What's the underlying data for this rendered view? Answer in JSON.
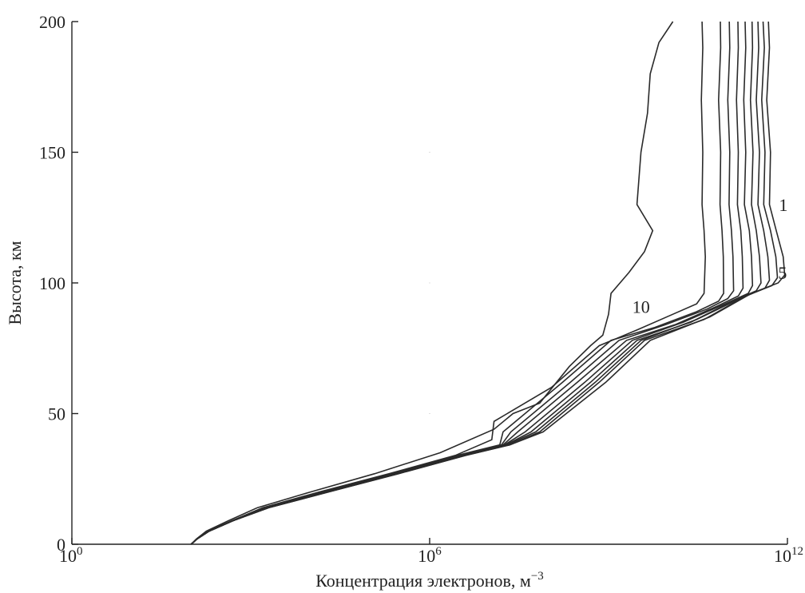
{
  "chart_data": {
    "type": "line",
    "xlabel": "Концентрация электронов, м",
    "xlabel_sup": "−3",
    "ylabel": "Высота, км",
    "xscale": "log",
    "xlim": [
      1,
      1000000000000
    ],
    "ylim": [
      0,
      200
    ],
    "x_ticks": [
      {
        "value": 1,
        "base": "10",
        "exp": "0"
      },
      {
        "value": 1000000,
        "base": "10",
        "exp": "6"
      },
      {
        "value": 1000000000000,
        "base": "10",
        "exp": "12"
      }
    ],
    "y_ticks": [
      0,
      50,
      100,
      150,
      200
    ],
    "grid": false,
    "series_labels": [
      {
        "text": "1",
        "series_index": 0,
        "x": 720000000000,
        "y": 130
      },
      {
        "text": "5",
        "series_index": 4,
        "x": 700000000000,
        "y": 104
      },
      {
        "text": "10",
        "series_index": 9,
        "x": 2500000000,
        "y": 91
      }
    ],
    "series": [
      {
        "x": [
          100,
          125,
          200,
          500,
          2000,
          20000,
          300000,
          4000000,
          22000000,
          80000000,
          900000000,
          5000000000,
          50000000000,
          250000000000,
          700000000000,
          900000000000,
          850000000000,
          650000000000,
          500000000000,
          520000000000,
          450000000000,
          500000000000,
          480000000000
        ],
        "y": [
          0,
          2,
          5,
          9,
          14,
          20,
          27,
          34,
          38,
          43,
          62,
          78,
          87,
          96,
          100,
          103,
          110,
          120,
          130,
          150,
          170,
          190,
          200
        ]
      },
      {
        "x": [
          100,
          125,
          200,
          500,
          2000,
          20000,
          300000,
          4000000,
          22000000,
          70000000,
          700000000,
          4000000000,
          40000000000,
          200000000000,
          550000000000,
          680000000000,
          640000000000,
          520000000000,
          400000000000,
          420000000000,
          370000000000,
          410000000000,
          390000000000
        ],
        "y": [
          0,
          2,
          5,
          9,
          14,
          20,
          27,
          34,
          38,
          43,
          62,
          78,
          86,
          95,
          99,
          102,
          110,
          120,
          130,
          150,
          170,
          190,
          200
        ]
      },
      {
        "x": [
          100,
          125,
          200,
          500,
          2000,
          20000,
          280000,
          3800000,
          20000000,
          60000000,
          600000000,
          3500000000,
          30000000000,
          160000000000,
          420000000000,
          500000000000,
          470000000000,
          400000000000,
          320000000000,
          340000000000,
          300000000000,
          330000000000,
          320000000000
        ],
        "y": [
          0,
          2,
          5,
          9,
          14,
          20,
          27,
          34,
          38,
          43,
          62,
          78,
          86,
          94,
          98,
          101,
          110,
          120,
          130,
          150,
          170,
          190,
          200
        ]
      },
      {
        "x": [
          100,
          125,
          200,
          500,
          1900,
          19000,
          270000,
          3700000,
          19000000,
          50000000,
          500000000,
          3000000000,
          24000000000,
          120000000000,
          300000000000,
          360000000000,
          340000000000,
          300000000000,
          250000000000,
          265000000000,
          240000000000,
          260000000000,
          255000000000
        ],
        "y": [
          0,
          2,
          5,
          9,
          14,
          20,
          27,
          34,
          38,
          43,
          62,
          78,
          85,
          93,
          97,
          100,
          110,
          120,
          130,
          150,
          170,
          190,
          200
        ]
      },
      {
        "x": [
          100,
          125,
          200,
          500,
          1900,
          18000,
          260000,
          3500000,
          18000000,
          40000000,
          400000000,
          2500000000,
          18000000000,
          90000000000,
          220000000000,
          260000000000,
          250000000000,
          230000000000,
          190000000000,
          200000000000,
          185000000000,
          200000000000,
          195000000000
        ],
        "y": [
          0,
          2,
          5,
          9,
          14,
          20,
          27,
          34,
          38,
          43,
          62,
          78,
          85,
          92,
          96,
          99,
          110,
          120,
          130,
          150,
          170,
          190,
          200
        ]
      },
      {
        "x": [
          100,
          125,
          200,
          500,
          1800,
          17000,
          250000,
          3300000,
          17000000,
          30000000,
          300000000,
          2000000000,
          13000000000,
          65000000000,
          150000000000,
          180000000000,
          175000000000,
          165000000000,
          145000000000,
          150000000000,
          140000000000,
          150000000000,
          148000000000
        ],
        "y": [
          0,
          2,
          5,
          9,
          14,
          20,
          27,
          34,
          38,
          43,
          62,
          78,
          84,
          91,
          95,
          98,
          110,
          120,
          130,
          150,
          170,
          190,
          200
        ]
      },
      {
        "x": [
          100,
          125,
          200,
          500,
          1800,
          16000,
          240000,
          3100000,
          16000000,
          23000000,
          230000000,
          1500000000,
          9000000000,
          45000000000,
          100000000000,
          125000000000,
          122000000000,
          115000000000,
          105000000000,
          108000000000,
          100000000000,
          108000000000,
          106000000000
        ],
        "y": [
          0,
          2,
          5,
          9,
          14,
          20,
          27,
          34,
          38,
          43,
          62,
          78,
          84,
          90,
          94,
          97,
          110,
          120,
          130,
          150,
          170,
          190,
          200
        ]
      },
      {
        "x": [
          100,
          125,
          200,
          500,
          1700,
          15000,
          220000,
          2900000,
          15000000,
          17000000,
          170000000,
          1100000000,
          6000000000,
          30000000000,
          70000000000,
          85000000000,
          84000000000,
          80000000000,
          74000000000,
          76000000000,
          70000000000,
          76000000000,
          75000000000
        ],
        "y": [
          0,
          2,
          5,
          9,
          14,
          20,
          27,
          34,
          38,
          43,
          62,
          78,
          83,
          89,
          93,
          96,
          110,
          120,
          130,
          150,
          170,
          190,
          200
        ]
      },
      {
        "x": [
          100,
          124,
          190,
          480,
          1600,
          14000,
          210000,
          2700000,
          11000000,
          12000000,
          110000000,
          700000000,
          3000000000,
          12000000000,
          30000000000,
          40000000000,
          42000000000,
          40000000000,
          37000000000,
          38000000000,
          36000000000,
          38000000000,
          37000000000
        ],
        "y": [
          0,
          2,
          5,
          9,
          14,
          20,
          27,
          34,
          40,
          47,
          60,
          76,
          82,
          88,
          92,
          96,
          110,
          120,
          130,
          150,
          170,
          190,
          200
        ]
      },
      {
        "x": [
          100,
          122,
          180,
          420,
          1300,
          10000,
          120000,
          1500000,
          12000000,
          25000000,
          70000000,
          220000000,
          500000000,
          800000000,
          1000000000,
          1100000000,
          2200000000,
          4000000000,
          5500000000,
          3000000000,
          3500000000,
          4500000000,
          5000000000,
          7000000000,
          12000000000
        ],
        "y": [
          0,
          2,
          5,
          9,
          14,
          20,
          27,
          35,
          44,
          50,
          54,
          68,
          76,
          80,
          88,
          96,
          104,
          112,
          120,
          130,
          150,
          165,
          180,
          192,
          200
        ]
      }
    ]
  }
}
